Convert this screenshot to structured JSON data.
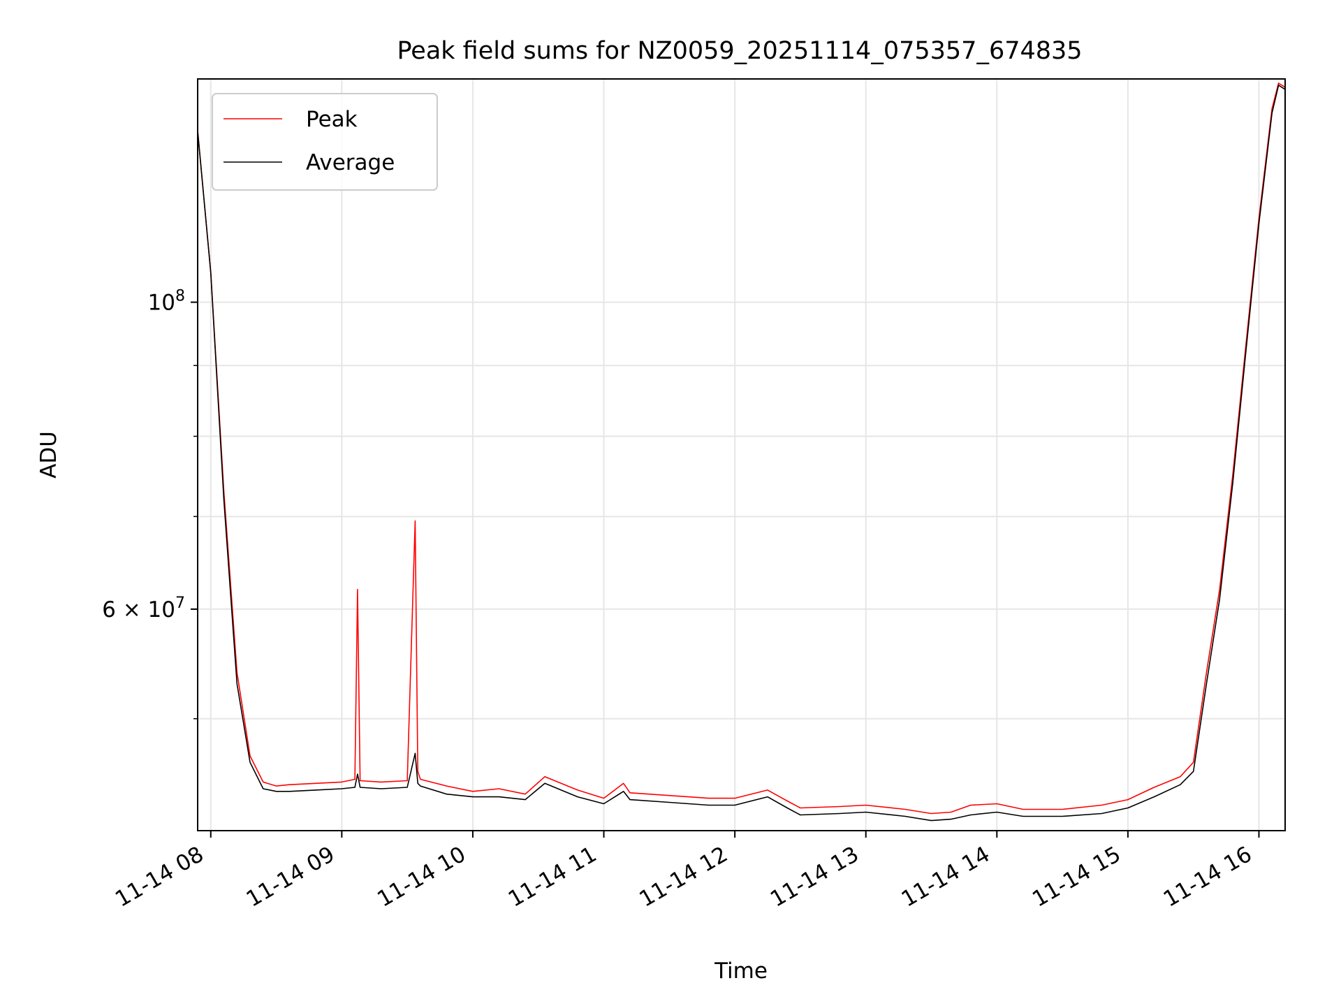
{
  "chart_data": {
    "type": "line",
    "title": "Peak field sums for NZ0059_20251114_075357_674835",
    "xlabel": "Time",
    "ylabel": "ADU",
    "y_scale": "log",
    "xlim": [
      7.9,
      16.2
    ],
    "ylim": [
      41500000,
      145000000
    ],
    "grid": true,
    "legend_position": "top-left",
    "x_ticks": [
      {
        "value": 8,
        "label": "11-14 08"
      },
      {
        "value": 9,
        "label": "11-14 09"
      },
      {
        "value": 10,
        "label": "11-14 10"
      },
      {
        "value": 11,
        "label": "11-14 11"
      },
      {
        "value": 12,
        "label": "11-14 12"
      },
      {
        "value": 13,
        "label": "11-14 13"
      },
      {
        "value": 14,
        "label": "11-14 14"
      },
      {
        "value": 15,
        "label": "11-14 15"
      },
      {
        "value": 16,
        "label": "11-14 16"
      }
    ],
    "y_ticks": [
      {
        "value": 100000000,
        "label": "10",
        "exp": "8"
      },
      {
        "value": 60000000,
        "label": "6 × 10",
        "exp": "7"
      }
    ],
    "y_minor_ticks": [
      50000000,
      70000000,
      80000000,
      90000000
    ],
    "series": [
      {
        "name": "Peak",
        "color": "#ff0000",
        "x": [
          7.9,
          8.0,
          8.1,
          8.2,
          8.3,
          8.4,
          8.5,
          8.6,
          8.8,
          9.0,
          9.1,
          9.12,
          9.14,
          9.3,
          9.5,
          9.56,
          9.58,
          9.6,
          9.8,
          10.0,
          10.2,
          10.4,
          10.55,
          10.8,
          11.0,
          11.15,
          11.2,
          11.5,
          11.8,
          12.0,
          12.25,
          12.4,
          12.5,
          12.8,
          13.0,
          13.3,
          13.5,
          13.65,
          13.8,
          14.0,
          14.2,
          14.5,
          14.8,
          15.0,
          15.2,
          15.4,
          15.5,
          15.6,
          15.7,
          15.8,
          15.9,
          16.0,
          16.1,
          16.15,
          16.2
        ],
        "y": [
          133000000,
          105000000,
          73000000,
          54000000,
          47000000,
          45000000,
          44700000,
          44800000,
          44900000,
          45000000,
          45200000,
          62000000,
          45100000,
          45000000,
          45100000,
          69500000,
          45800000,
          45200000,
          44700000,
          44300000,
          44500000,
          44100000,
          45400000,
          44400000,
          43800000,
          44900000,
          44200000,
          44000000,
          43800000,
          43800000,
          44400000,
          43600000,
          43100000,
          43200000,
          43300000,
          43000000,
          42700000,
          42800000,
          43300000,
          43400000,
          43000000,
          43000000,
          43300000,
          43700000,
          44600000,
          45400000,
          46500000,
          54000000,
          62000000,
          75000000,
          93000000,
          115000000,
          138000000,
          144000000,
          143000000
        ]
      },
      {
        "name": "Average",
        "color": "#000000",
        "x": [
          7.9,
          8.0,
          8.1,
          8.2,
          8.3,
          8.4,
          8.5,
          8.6,
          8.8,
          9.0,
          9.1,
          9.12,
          9.14,
          9.3,
          9.5,
          9.56,
          9.58,
          9.6,
          9.8,
          10.0,
          10.2,
          10.4,
          10.55,
          10.8,
          11.0,
          11.15,
          11.2,
          11.5,
          11.8,
          12.0,
          12.25,
          12.4,
          12.5,
          12.8,
          13.0,
          13.3,
          13.5,
          13.65,
          13.8,
          14.0,
          14.2,
          14.5,
          14.8,
          15.0,
          15.2,
          15.4,
          15.5,
          15.6,
          15.7,
          15.8,
          15.9,
          16.0,
          16.1,
          16.15,
          16.2
        ],
        "y": [
          133000000,
          105000000,
          72000000,
          53000000,
          46500000,
          44500000,
          44300000,
          44300000,
          44400000,
          44500000,
          44600000,
          45600000,
          44600000,
          44500000,
          44600000,
          47200000,
          44900000,
          44700000,
          44100000,
          43900000,
          43900000,
          43700000,
          44900000,
          43900000,
          43400000,
          44300000,
          43700000,
          43500000,
          43300000,
          43300000,
          43900000,
          43100000,
          42600000,
          42700000,
          42800000,
          42500000,
          42200000,
          42300000,
          42600000,
          42800000,
          42500000,
          42500000,
          42700000,
          43100000,
          43900000,
          44800000,
          45800000,
          53000000,
          61000000,
          74000000,
          92000000,
          114000000,
          137000000,
          143500000,
          142500000
        ]
      }
    ]
  }
}
